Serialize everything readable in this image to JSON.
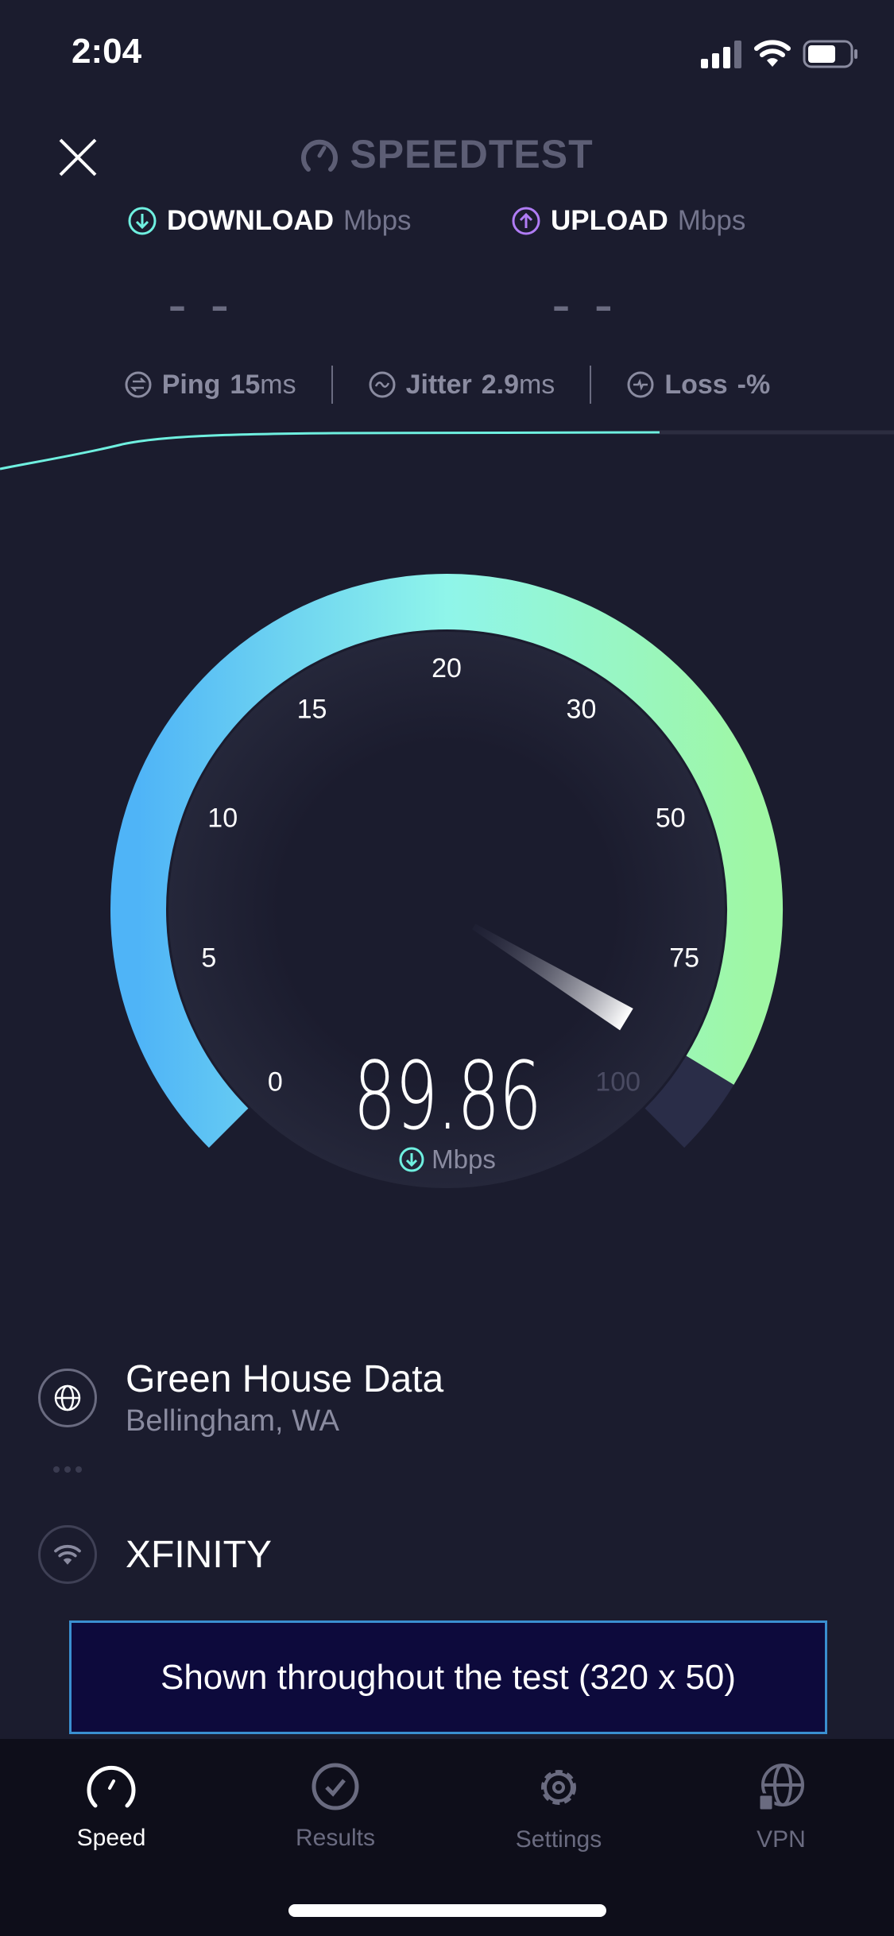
{
  "status_bar": {
    "time": "2:04"
  },
  "header": {
    "title": "SPEEDTEST"
  },
  "download": {
    "label": "DOWNLOAD",
    "unit": "Mbps",
    "value": "– –",
    "color": "#6ff0e0"
  },
  "upload": {
    "label": "UPLOAD",
    "unit": "Mbps",
    "value": "– –",
    "color": "#b07cf5"
  },
  "stats": {
    "ping": {
      "label": "Ping",
      "value": "15",
      "unit": "ms"
    },
    "jitter": {
      "label": "Jitter",
      "value": "2.9",
      "unit": "ms"
    },
    "loss": {
      "label": "Loss",
      "value": "-%"
    }
  },
  "gauge": {
    "ticks": [
      "0",
      "5",
      "10",
      "15",
      "20",
      "30",
      "50",
      "75",
      "100"
    ],
    "reading": 89.86,
    "reading_text": "89.86",
    "unit": "Mbps",
    "colors": {
      "start": "#4fb4f7",
      "mid": "#8ff5ea",
      "end": "#9ff7a4"
    }
  },
  "server": {
    "name": "Green House Data",
    "location": "Bellingham, WA"
  },
  "provider": {
    "name": "XFINITY"
  },
  "ad": {
    "text": "Shown throughout the test (320 x 50)"
  },
  "tabs": [
    {
      "label": "Speed",
      "icon": "speedometer-icon",
      "active": true
    },
    {
      "label": "Results",
      "icon": "check-circle-icon"
    },
    {
      "label": "Settings",
      "icon": "gear-icon"
    },
    {
      "label": "VPN",
      "icon": "globe-lock-icon"
    }
  ]
}
